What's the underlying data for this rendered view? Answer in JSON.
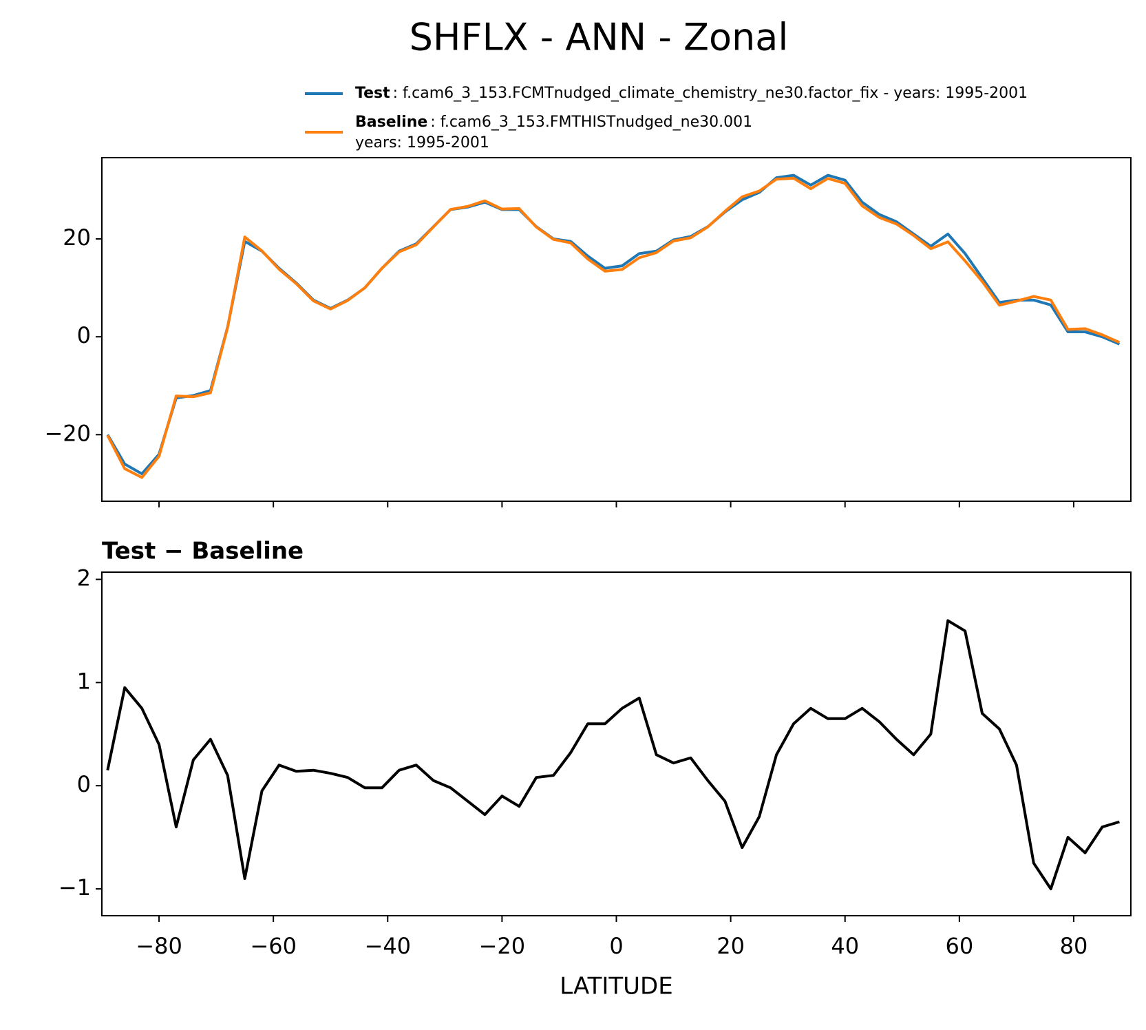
{
  "chart_data": [
    {
      "type": "line",
      "title": "SHFLX - ANN - Zonal",
      "x": [
        -89,
        -86,
        -83,
        -80,
        -77,
        -74,
        -71,
        -68,
        -65,
        -62,
        -59,
        -56,
        -53,
        -50,
        -47,
        -44,
        -41,
        -38,
        -35,
        -32,
        -29,
        -26,
        -23,
        -20,
        -17,
        -14,
        -11,
        -8,
        -5,
        -2,
        1,
        4,
        7,
        10,
        13,
        16,
        19,
        22,
        25,
        28,
        31,
        34,
        37,
        40,
        43,
        46,
        49,
        52,
        55,
        58,
        61,
        64,
        67,
        70,
        73,
        76,
        79,
        82,
        85,
        88
      ],
      "series": [
        {
          "name": "Test",
          "description": [
            ": f.cam6_3_153.FCMTnudged_climate_chemistry_ne30.factor_fix - years: 1995-2001"
          ],
          "color": "#1f77b4",
          "values": [
            -20,
            -26,
            -28,
            -24,
            -12.5,
            -12,
            -11,
            2,
            19.5,
            17.5,
            14,
            11,
            7.5,
            5.8,
            7.5,
            10,
            14,
            17.5,
            19,
            22.5,
            26,
            26.5,
            27.5,
            26,
            26,
            22.5,
            20,
            19.5,
            16.5,
            14,
            14.5,
            17,
            17.5,
            19.8,
            20.5,
            22.5,
            25.5,
            28,
            29.5,
            32.5,
            33,
            31,
            33,
            32,
            27.5,
            25,
            23.5,
            21,
            18.5,
            21,
            17,
            12,
            7,
            7.5,
            7.5,
            6.5,
            1,
            1,
            0,
            -1.5
          ]
        },
        {
          "name": "Baseline",
          "description": [
            ": f.cam6_3_153.FMTHISTnudged_ne30.001",
            "years: 1995-2001"
          ],
          "color": "#ff7f0e",
          "values": [
            -20.15,
            -26.95,
            -28.75,
            -24.4,
            -12.1,
            -12.25,
            -11.45,
            1.9,
            20.4,
            17.55,
            13.8,
            10.86,
            7.35,
            5.68,
            7.42,
            10.02,
            14.02,
            17.35,
            18.8,
            22.45,
            26.02,
            26.65,
            27.78,
            26.1,
            26.2,
            22.42,
            19.9,
            19.18,
            15.9,
            13.4,
            13.75,
            16.15,
            17.2,
            19.58,
            20.23,
            22.45,
            25.65,
            28.6,
            29.8,
            32.2,
            32.4,
            30.25,
            32.35,
            31.35,
            26.75,
            24.38,
            23.05,
            20.7,
            18,
            19.4,
            15.5,
            11.3,
            6.45,
            7.3,
            8.25,
            7.5,
            1.5,
            1.65,
            0.4,
            -1.15
          ]
        }
      ],
      "xlim": [
        -90,
        90
      ],
      "xticks": [
        -80,
        -60,
        -40,
        -20,
        0,
        20,
        40,
        60,
        80
      ],
      "show_xtick_labels": false,
      "ylim": [
        -33.6,
        36.6
      ],
      "yticks": [
        20,
        0,
        {
          "value": -20,
          "label": "−20"
        }
      ],
      "grid": false
    },
    {
      "type": "line",
      "title": "Test − Baseline",
      "xlabel": "LATITUDE",
      "x": [
        -89,
        -86,
        -83,
        -80,
        -77,
        -74,
        -71,
        -68,
        -65,
        -62,
        -59,
        -56,
        -53,
        -50,
        -47,
        -44,
        -41,
        -38,
        -35,
        -32,
        -29,
        -26,
        -23,
        -20,
        -17,
        -14,
        -11,
        -8,
        -5,
        -2,
        1,
        4,
        7,
        10,
        13,
        16,
        19,
        22,
        25,
        28,
        31,
        34,
        37,
        40,
        43,
        46,
        49,
        52,
        55,
        58,
        61,
        64,
        67,
        70,
        73,
        76,
        79,
        82,
        85,
        88
      ],
      "series": [
        {
          "color": "#000000",
          "values": [
            0.15,
            0.95,
            0.75,
            0.4,
            -0.4,
            0.25,
            0.45,
            0.1,
            -0.9,
            -0.05,
            0.2,
            0.14,
            0.15,
            0.12,
            0.08,
            -0.02,
            -0.02,
            0.15,
            0.2,
            0.05,
            -0.02,
            -0.15,
            -0.28,
            -0.1,
            -0.2,
            0.08,
            0.1,
            0.32,
            0.6,
            0.6,
            0.75,
            0.85,
            0.3,
            0.22,
            0.27,
            0.05,
            -0.15,
            -0.6,
            -0.3,
            0.3,
            0.6,
            0.75,
            0.65,
            0.65,
            0.75,
            0.62,
            0.45,
            0.3,
            0.5,
            1.6,
            1.5,
            0.7,
            0.55,
            0.2,
            -0.75,
            -1,
            -0.5,
            -0.65,
            -0.4,
            -0.35
          ]
        }
      ],
      "xlim": [
        -90,
        90
      ],
      "xticks": [
        {
          "value": -80,
          "label": "−80"
        },
        {
          "value": -60,
          "label": "−60"
        },
        {
          "value": -40,
          "label": "−40"
        },
        {
          "value": -20,
          "label": "−20"
        },
        0,
        20,
        40,
        60,
        80
      ],
      "show_xtick_labels": true,
      "ylim": [
        -1.26,
        2.07
      ],
      "yticks": [
        2,
        1,
        0,
        {
          "value": -1,
          "label": "−1"
        }
      ],
      "grid": false
    }
  ]
}
